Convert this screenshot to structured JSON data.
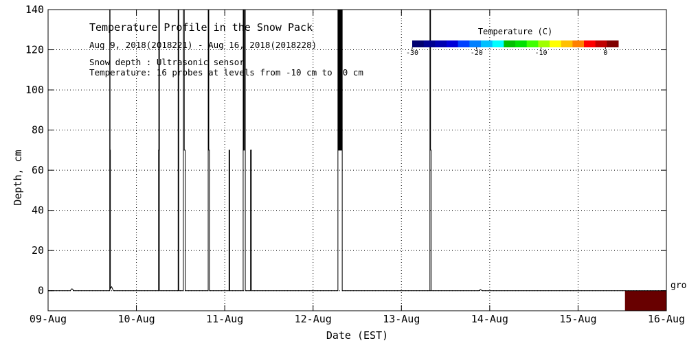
{
  "chart_data": {
    "type": "line",
    "title": "Temperature Profile in the Snow Pack",
    "date_range": "Aug  9, 2018(2018221) - Aug 16, 2018(2018228)",
    "notes": [
      "Snow depth : Ultrasonic sensor",
      "Temperature: 16 probes at levels from -10 cm to 90 cm"
    ],
    "xlabel": "Date (EST)",
    "ylabel": "Depth, cm",
    "x_tick_labels": [
      "09-Aug",
      "10-Aug",
      "11-Aug",
      "12-Aug",
      "13-Aug",
      "14-Aug",
      "15-Aug",
      "16-Aug"
    ],
    "y_ticks": [
      0,
      20,
      40,
      60,
      80,
      100,
      120,
      140
    ],
    "xlim": [
      "2018-08-09T00:00",
      "2018-08-16T00:00"
    ],
    "ylim": [
      -10,
      140
    ],
    "grid": true,
    "ground_label": "grou",
    "colorbar": {
      "title": "Temperature (C)",
      "range": [
        -30,
        2
      ],
      "ticks": [
        -30,
        -20,
        -10,
        0
      ],
      "colors": [
        "#000070",
        "#000090",
        "#0000b0",
        "#0000d8",
        "#0040ff",
        "#0080ff",
        "#00c0ff",
        "#00ffff",
        "#00c000",
        "#00e000",
        "#40ff00",
        "#a0ff00",
        "#ffff00",
        "#ffc000",
        "#ff8000",
        "#ff0000",
        "#c00000",
        "#800000"
      ]
    },
    "series": [
      {
        "points": [
          [
            "2018-08-09T00:00",
            0
          ],
          [
            "2018-08-09T06:00",
            0
          ],
          [
            "2018-08-09T06:30",
            1
          ],
          [
            "2018-08-09T07:00",
            0
          ],
          [
            "2018-08-09T16:45",
            0
          ],
          [
            "2018-08-09T16:45",
            140
          ],
          [
            "2018-08-09T16:50",
            140
          ],
          [
            "2018-08-09T16:50",
            70
          ],
          [
            "2018-08-09T16:55",
            70
          ],
          [
            "2018-08-09T16:55",
            1
          ],
          [
            "2018-08-09T17:15",
            2
          ],
          [
            "2018-08-09T17:45",
            0
          ],
          [
            "2018-08-10T06:00",
            0
          ],
          [
            "2018-08-10T06:00",
            70
          ],
          [
            "2018-08-10T06:05",
            70
          ],
          [
            "2018-08-10T06:05",
            140
          ],
          [
            "2018-08-10T06:15",
            140
          ],
          [
            "2018-08-10T06:15",
            0
          ],
          [
            "2018-08-10T11:20",
            0
          ],
          [
            "2018-08-10T11:20",
            140
          ],
          [
            "2018-08-10T11:30",
            140
          ],
          [
            "2018-08-10T11:30",
            0
          ],
          [
            "2018-08-10T12:45",
            0
          ],
          [
            "2018-08-10T12:45",
            140
          ],
          [
            "2018-08-10T13:00",
            140
          ],
          [
            "2018-08-10T13:00",
            70
          ],
          [
            "2018-08-10T13:15",
            70
          ],
          [
            "2018-08-10T13:15",
            0
          ],
          [
            "2018-08-10T19:30",
            0
          ],
          [
            "2018-08-10T19:30",
            140
          ],
          [
            "2018-08-10T19:40",
            140
          ],
          [
            "2018-08-10T19:40",
            70
          ],
          [
            "2018-08-10T19:50",
            70
          ],
          [
            "2018-08-10T19:50",
            0
          ],
          [
            "2018-08-11T01:10",
            0
          ],
          [
            "2018-08-11T01:10",
            70
          ],
          [
            "2018-08-11T01:20",
            70
          ],
          [
            "2018-08-11T01:20",
            0
          ],
          [
            "2018-08-11T05:00",
            0
          ],
          [
            "2018-08-11T05:00",
            140
          ],
          [
            "2018-08-11T05:10",
            140
          ],
          [
            "2018-08-11T05:10",
            70
          ],
          [
            "2018-08-11T05:20",
            70
          ],
          [
            "2018-08-11T05:20",
            140
          ],
          [
            "2018-08-11T05:35",
            140
          ],
          [
            "2018-08-11T05:35",
            0
          ],
          [
            "2018-08-11T07:00",
            0
          ],
          [
            "2018-08-11T07:00",
            70
          ],
          [
            "2018-08-11T07:15",
            70
          ],
          [
            "2018-08-11T07:15",
            0
          ],
          [
            "2018-08-12T06:45",
            0
          ],
          [
            "2018-08-12T06:45",
            140
          ],
          [
            "2018-08-12T06:55",
            140
          ],
          [
            "2018-08-12T06:55",
            70
          ],
          [
            "2018-08-12T07:05",
            70
          ],
          [
            "2018-08-12T07:05",
            140
          ],
          [
            "2018-08-12T07:15",
            140
          ],
          [
            "2018-08-12T07:15",
            70
          ],
          [
            "2018-08-12T07:25",
            70
          ],
          [
            "2018-08-12T07:25",
            140
          ],
          [
            "2018-08-12T07:35",
            140
          ],
          [
            "2018-08-12T07:35",
            70
          ],
          [
            "2018-08-12T07:45",
            70
          ],
          [
            "2018-08-12T07:45",
            140
          ],
          [
            "2018-08-12T07:55",
            140
          ],
          [
            "2018-08-12T07:55",
            0
          ],
          [
            "2018-08-13T07:45",
            0
          ],
          [
            "2018-08-13T07:45",
            140
          ],
          [
            "2018-08-13T07:55",
            140
          ],
          [
            "2018-08-13T07:55",
            70
          ],
          [
            "2018-08-13T08:05",
            70
          ],
          [
            "2018-08-13T08:05",
            0
          ],
          [
            "2018-08-13T21:00",
            0
          ],
          [
            "2018-08-13T21:30",
            0.5
          ],
          [
            "2018-08-13T22:00",
            0
          ],
          [
            "2018-08-16T00:00",
            0
          ]
        ]
      }
    ],
    "ground_block": {
      "start": "2018-08-15T12:45",
      "end": "2018-08-16T00:00",
      "y_from": -10,
      "y_to": 0,
      "color": "#680000"
    }
  }
}
